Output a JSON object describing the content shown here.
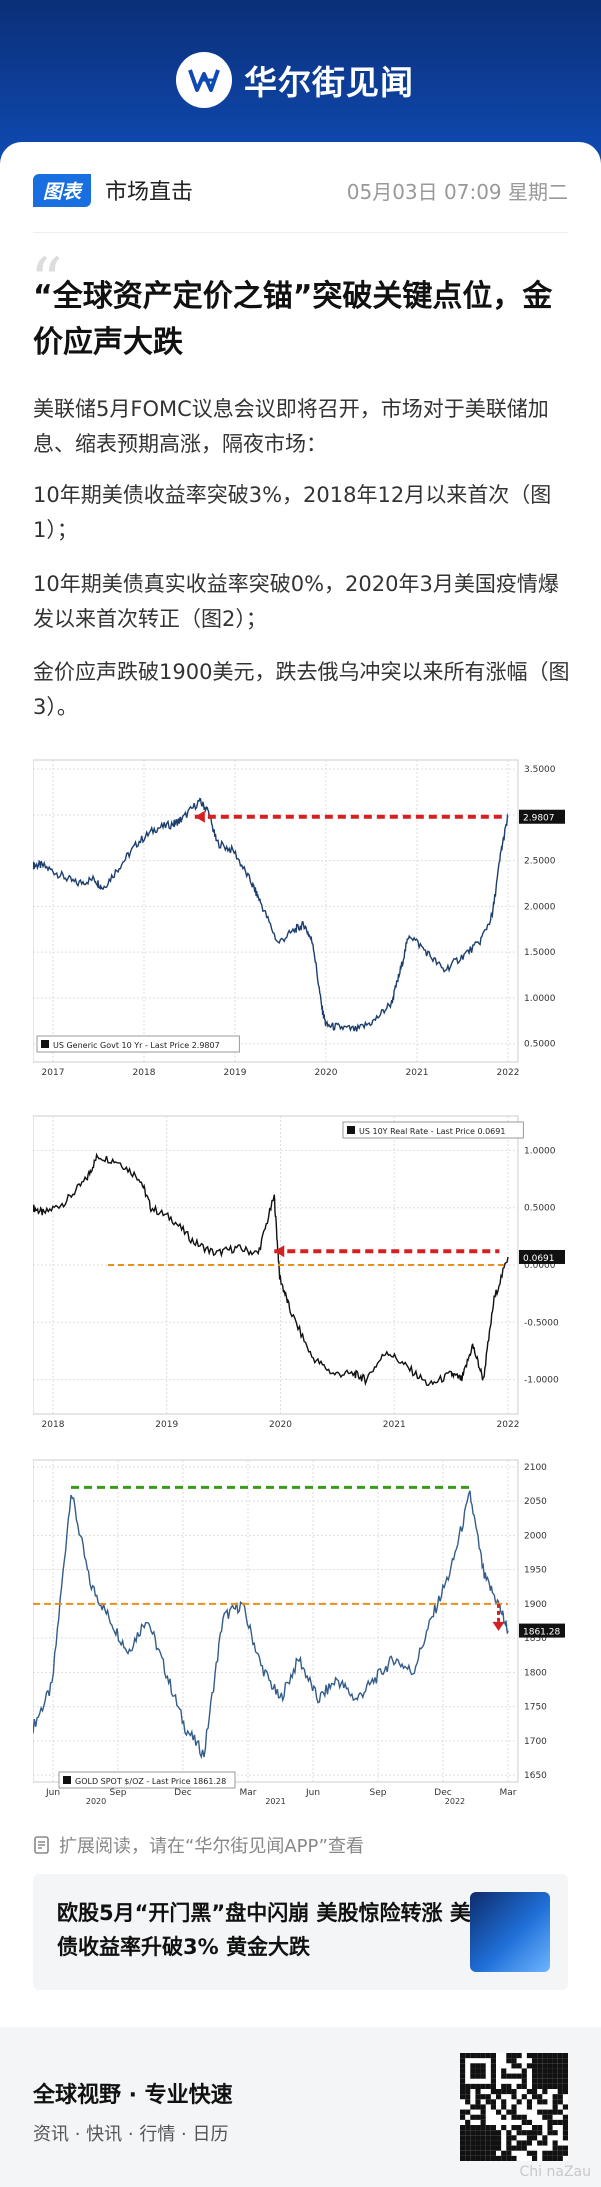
{
  "brand": {
    "name": "华尔街见闻"
  },
  "meta": {
    "tag": "图表",
    "channel": "市场直击",
    "timestamp": "05月03日 07:09 星期二"
  },
  "article": {
    "title": "“全球资产定价之锚”突破关键点位，金价应声大跌",
    "paragraphs": [
      "美联储5月FOMC议息会议即将召开，市场对于美联储加息、缩表预期高涨，隔夜市场：",
      "10年期美债收益率突破3%，2018年12月以来首次（图1）；",
      "10年期美债真实收益率突破0%，2020年3月美国疫情爆发以来首次转正（图2）；",
      "金价应声跌破1900美元，跌去俄乌冲突以来所有涨幅（图3）。"
    ]
  },
  "chart_data": [
    {
      "type": "line",
      "legend": "US Generic Govt 10 Yr - Last Price 2.9807",
      "last_label": "2.9807",
      "x_ticks": [
        "2017",
        "2018",
        "2019",
        "2020",
        "2021",
        "2022"
      ],
      "y_ticks": [
        "3.5000",
        "3.0000",
        "2.5000",
        "2.0000",
        "1.5000",
        "1.0000",
        "0.5000"
      ],
      "ylim": [
        0.3,
        3.6
      ],
      "x": [
        2016.9,
        2017.0,
        2017.2,
        2017.4,
        2017.6,
        2017.7,
        2017.9,
        2018.1,
        2018.3,
        2018.5,
        2018.6,
        2018.8,
        2018.9,
        2019.0,
        2019.2,
        2019.4,
        2019.5,
        2019.7,
        2019.9,
        2020.0,
        2020.1,
        2020.2,
        2020.25,
        2020.4,
        2020.6,
        2020.8,
        2021.0,
        2021.1,
        2021.2,
        2021.4,
        2021.6,
        2021.8,
        2022.0,
        2022.15,
        2022.25,
        2022.33
      ],
      "values": [
        2.45,
        2.45,
        2.35,
        2.25,
        2.3,
        2.2,
        2.45,
        2.7,
        2.85,
        2.9,
        2.95,
        3.15,
        3.05,
        2.7,
        2.6,
        2.25,
        2.05,
        1.6,
        1.75,
        1.8,
        1.6,
        0.9,
        0.7,
        0.68,
        0.65,
        0.75,
        0.95,
        1.3,
        1.7,
        1.5,
        1.3,
        1.45,
        1.6,
        1.9,
        2.6,
        2.98
      ],
      "annotation": "dashed arrow from 2022 level back to late-2018 peak"
    },
    {
      "type": "line",
      "legend": "US 10Y Real Rate - Last Price 0.0691",
      "last_label": "0.0691",
      "x_ticks": [
        "2018",
        "2019",
        "2020",
        "2021",
        "2022"
      ],
      "y_ticks": [
        "1.0000",
        "0.5000",
        "0.0000",
        "-0.5000",
        "-1.0000"
      ],
      "ylim": [
        -1.3,
        1.3
      ],
      "x": [
        2017.9,
        2018.0,
        2018.2,
        2018.4,
        2018.5,
        2018.7,
        2018.9,
        2019.0,
        2019.2,
        2019.4,
        2019.6,
        2019.8,
        2020.0,
        2020.15,
        2020.2,
        2020.3,
        2020.5,
        2020.7,
        2020.9,
        2021.0,
        2021.2,
        2021.4,
        2021.6,
        2021.8,
        2021.9,
        2022.0,
        2022.1,
        2022.2,
        2022.33
      ],
      "values": [
        0.5,
        0.45,
        0.55,
        0.75,
        0.95,
        0.9,
        0.75,
        0.5,
        0.4,
        0.2,
        0.1,
        0.15,
        0.1,
        0.6,
        -0.1,
        -0.4,
        -0.8,
        -0.95,
        -0.95,
        -1.0,
        -0.75,
        -0.9,
        -1.05,
        -0.95,
        -1.0,
        -0.7,
        -1.0,
        -0.3,
        0.07
      ],
      "annotation": "dashed arrow back to March-2020 level; orange dashed zero line"
    },
    {
      "type": "line",
      "legend": "GOLD SPOT $/OZ - Last Price 1861.28",
      "last_label": "1861.28",
      "x_ticks": [
        "Jun",
        "Sep",
        "Dec",
        "Mar",
        "Jun",
        "Sep",
        "Dec",
        "Mar"
      ],
      "x_years": [
        "2020",
        "2021",
        "2022"
      ],
      "y_ticks": [
        "2100",
        "2050",
        "2000",
        "1950",
        "1900",
        "1850",
        "1800",
        "1750",
        "1700",
        "1650"
      ],
      "ylim": [
        1640,
        2110
      ],
      "x": [
        0,
        4,
        8,
        12,
        16,
        20,
        24,
        28,
        32,
        36,
        40,
        44,
        48,
        52,
        56,
        60,
        64,
        68,
        72,
        76,
        80,
        84,
        88,
        92,
        95,
        98,
        100
      ],
      "values": [
        1720,
        1780,
        2065,
        1930,
        1880,
        1830,
        1880,
        1800,
        1720,
        1680,
        1880,
        1900,
        1810,
        1760,
        1820,
        1760,
        1790,
        1760,
        1790,
        1820,
        1800,
        1880,
        1950,
        2060,
        1940,
        1900,
        1861
      ],
      "annotation": "green dashed line at 2070 peak; orange dashed line at 1900"
    }
  ],
  "read_more": {
    "text": "扩展阅读，请在“华尔街见闻APP”查看"
  },
  "related": {
    "title": "欧股5月“开门黑”盘中闪崩 美股惊险转涨 美债收益率升破3% 黄金大跌"
  },
  "footer": {
    "slogan": "全球视野 · 专业快速",
    "links": "资讯 · 快讯 · 行情 · 日历"
  },
  "watermark": "Chi naZau"
}
